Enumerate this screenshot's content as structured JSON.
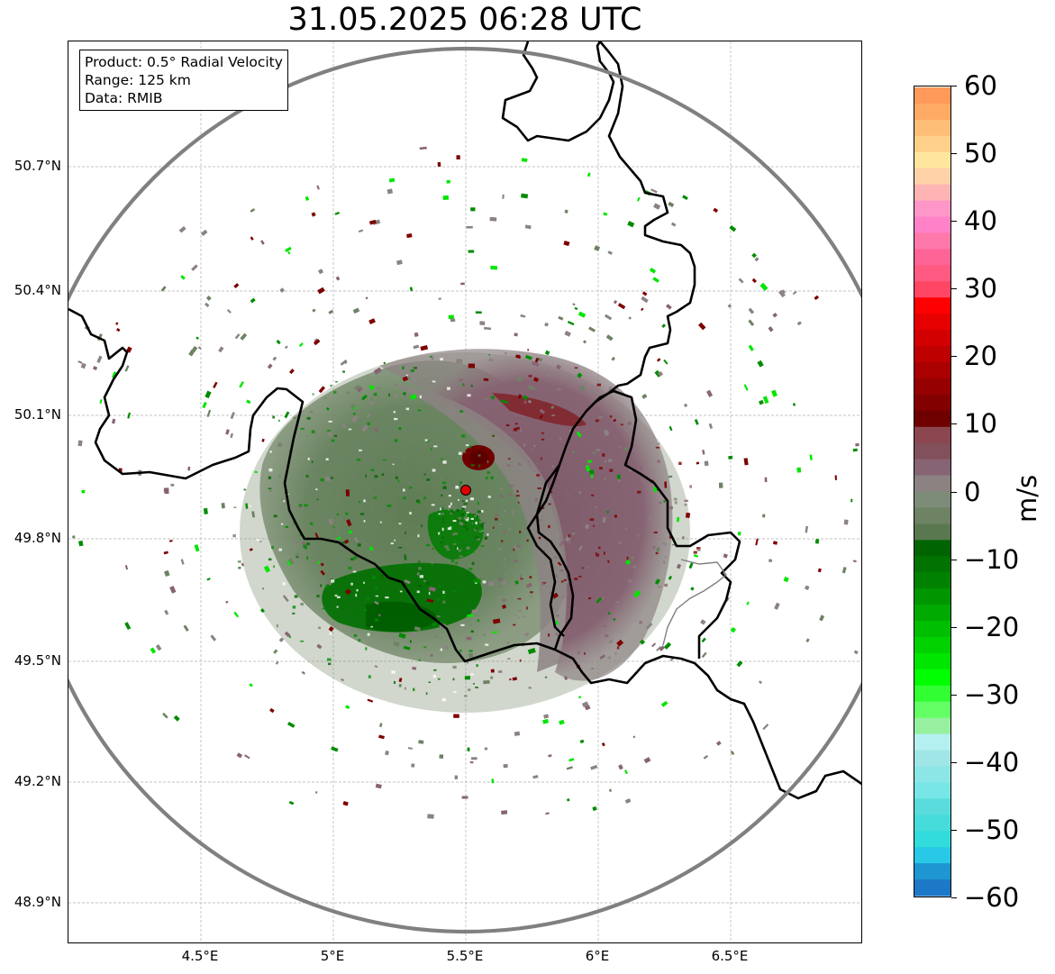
{
  "title": "31.05.2025 06:28 UTC",
  "info_box": {
    "product": "Product: 0.5° Radial Velocity",
    "range": "Range: 125 km",
    "data": "Data: RMIB"
  },
  "map": {
    "lon_range": [
      4.0,
      7.0
    ],
    "lat_range": [
      48.8,
      51.0
    ],
    "lon_ticks": [
      "4.5°E",
      "5°E",
      "5.5°E",
      "6°E",
      "6.5°E"
    ],
    "lat_ticks": [
      "50.7°N",
      "50.4°N",
      "50.1°N",
      "49.8°N",
      "49.5°N",
      "49.2°N",
      "48.9°N"
    ],
    "radar_site": {
      "lon": 5.5056,
      "lat": 49.914
    },
    "range_ring_color": "#808080",
    "border_color": "#000000",
    "grid": true
  },
  "colorbar": {
    "unit": "m/s",
    "ticks": [
      "60",
      "50",
      "40",
      "30",
      "20",
      "10",
      "0",
      "−10",
      "−20",
      "−30",
      "−40",
      "−50",
      "−60"
    ],
    "range": [
      -60,
      60
    ],
    "colors_top_to_bottom": [
      "#ff9a5a",
      "#ffaa64",
      "#ffbe78",
      "#ffd08a",
      "#ffe69e",
      "#ffd2a8",
      "#ffb4b4",
      "#ff96c8",
      "#ff82c8",
      "#ff78aa",
      "#ff6496",
      "#ff5a82",
      "#ff4664",
      "#ff0000",
      "#e60000",
      "#d20000",
      "#be0000",
      "#aa0000",
      "#960000",
      "#820000",
      "#6e0000",
      "#8c4650",
      "#82505a",
      "#876473",
      "#8c8282",
      "#7d8c78",
      "#6e8264",
      "#5a7850",
      "#006400",
      "#007300",
      "#008200",
      "#009600",
      "#00aa00",
      "#00be00",
      "#00d200",
      "#00e600",
      "#00ff00",
      "#32ff32",
      "#64ff64",
      "#96f0a0",
      "#b4f0f0",
      "#a0e6e6",
      "#8ce6e6",
      "#78e6e6",
      "#5adcdc",
      "#46dcdc",
      "#32dcdc",
      "#28c8e6",
      "#1e96d2",
      "#1e78c8"
    ]
  },
  "velocity_colors": {
    "green_dark": "#006400",
    "green": "#008c00",
    "gray_green": "#6e8264",
    "gray": "#8c8282",
    "mauve": "#876473",
    "dark_red": "#7d0000",
    "bright_green": "#00e600"
  }
}
